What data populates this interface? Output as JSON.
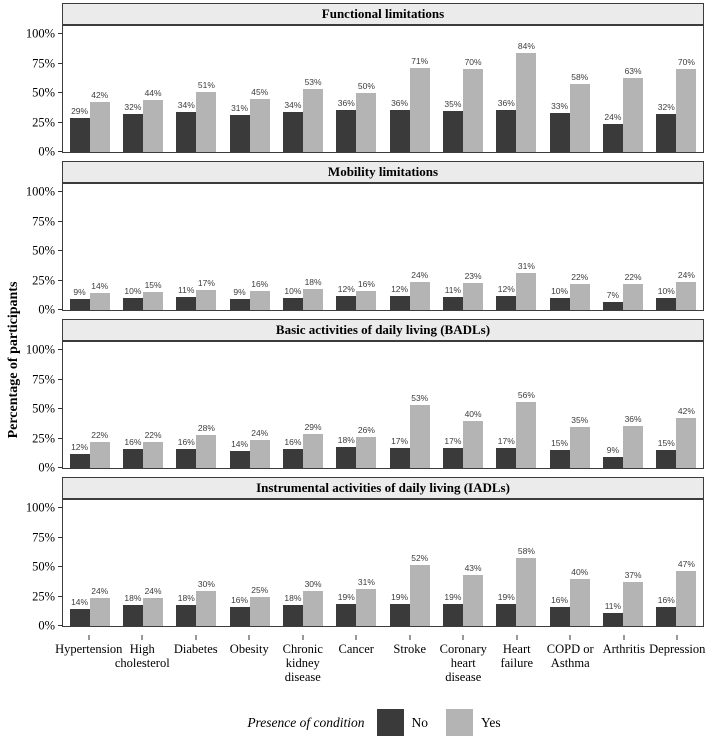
{
  "chart_data": {
    "type": "bar",
    "title": "",
    "ylabel": "Percentage of participants",
    "xlabel": "",
    "ylim": [
      0,
      100
    ],
    "y_ticks": [
      0,
      25,
      50,
      75,
      100
    ],
    "y_tick_suffix": "%",
    "grid": false,
    "value_label_suffix": "%",
    "categories": [
      "Hypertension",
      "High cholesterol",
      "Diabetes",
      "Obesity",
      "Chronic kidney disease",
      "Cancer",
      "Stroke",
      "Coronary heart disease",
      "Heart failure",
      "COPD or Asthma",
      "Arthritis",
      "Depression"
    ],
    "category_label_lines": [
      [
        "Hypertension"
      ],
      [
        "High",
        "cholesterol"
      ],
      [
        "Diabetes"
      ],
      [
        "Obesity"
      ],
      [
        "Chronic",
        "kidney",
        "disease"
      ],
      [
        "Cancer"
      ],
      [
        "Stroke"
      ],
      [
        "Coronary",
        "heart",
        "disease"
      ],
      [
        "Heart",
        "failure"
      ],
      [
        "COPD or",
        "Asthma"
      ],
      [
        "Arthritis"
      ],
      [
        "Depression"
      ]
    ],
    "facets": [
      {
        "title": "Functional limitations",
        "series": [
          {
            "name": "No",
            "values": [
              29,
              32,
              34,
              31,
              34,
              36,
              36,
              35,
              36,
              33,
              24,
              32
            ]
          },
          {
            "name": "Yes",
            "values": [
              42,
              44,
              51,
              45,
              53,
              50,
              71,
              70,
              84,
              58,
              63,
              70
            ]
          }
        ]
      },
      {
        "title": "Mobility limitations",
        "series": [
          {
            "name": "No",
            "values": [
              9,
              10,
              11,
              9,
              10,
              12,
              12,
              11,
              12,
              10,
              7,
              10
            ]
          },
          {
            "name": "Yes",
            "values": [
              14,
              15,
              17,
              16,
              18,
              16,
              24,
              23,
              31,
              22,
              22,
              24
            ]
          }
        ]
      },
      {
        "title": "Basic activities of daily living (BADLs)",
        "series": [
          {
            "name": "No",
            "values": [
              12,
              16,
              16,
              14,
              16,
              18,
              17,
              17,
              17,
              15,
              9,
              15
            ]
          },
          {
            "name": "Yes",
            "values": [
              22,
              22,
              28,
              24,
              29,
              26,
              53,
              40,
              56,
              35,
              36,
              42
            ]
          }
        ]
      },
      {
        "title": "Instrumental activities of daily living (IADLs)",
        "series": [
          {
            "name": "No",
            "values": [
              14,
              18,
              18,
              16,
              18,
              19,
              19,
              19,
              19,
              16,
              11,
              16
            ]
          },
          {
            "name": "Yes",
            "values": [
              24,
              24,
              30,
              25,
              30,
              31,
              52,
              43,
              58,
              40,
              37,
              47
            ]
          }
        ]
      }
    ],
    "legend": {
      "title": "Presence of condition",
      "position": "bottom",
      "entries": [
        {
          "label": "No",
          "color": "#3a3a3a"
        },
        {
          "label": "Yes",
          "color": "#b4b4b4"
        }
      ]
    }
  },
  "colors": {
    "no_bar": "#3a3a3a",
    "yes_bar": "#b4b4b4",
    "strip_background": "#ebebeb",
    "panel_border": "#3c3c3c"
  }
}
